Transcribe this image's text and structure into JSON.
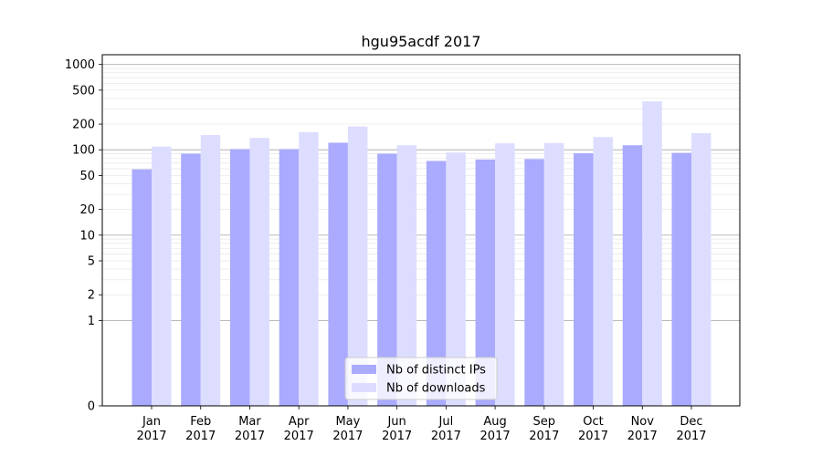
{
  "chart_data": {
    "type": "bar",
    "title": "hgu95acdf 2017",
    "xlabel": "",
    "ylabel": "",
    "yscale": "symlog",
    "ylim": [
      0,
      1300
    ],
    "yticks": [
      0,
      1,
      2,
      5,
      10,
      20,
      50,
      100,
      200,
      500,
      1000
    ],
    "categories": [
      "Jan\n2017",
      "Feb\n2017",
      "Mar\n2017",
      "Apr\n2017",
      "May\n2017",
      "Jun\n2017",
      "Jul\n2017",
      "Aug\n2017",
      "Sep\n2017",
      "Oct\n2017",
      "Nov\n2017",
      "Dec\n2017"
    ],
    "series": [
      {
        "name": "Nb of distinct IPs",
        "color": "#aaaaff",
        "values": [
          59,
          90,
          102,
          102,
          121,
          90,
          74,
          77,
          78,
          91,
          113,
          92
        ]
      },
      {
        "name": "Nb of downloads",
        "color": "#ddddff",
        "values": [
          109,
          149,
          138,
          161,
          188,
          113,
          93,
          119,
          120,
          141,
          369,
          157
        ]
      }
    ],
    "legend_position": "bottom-center",
    "grid": true
  }
}
